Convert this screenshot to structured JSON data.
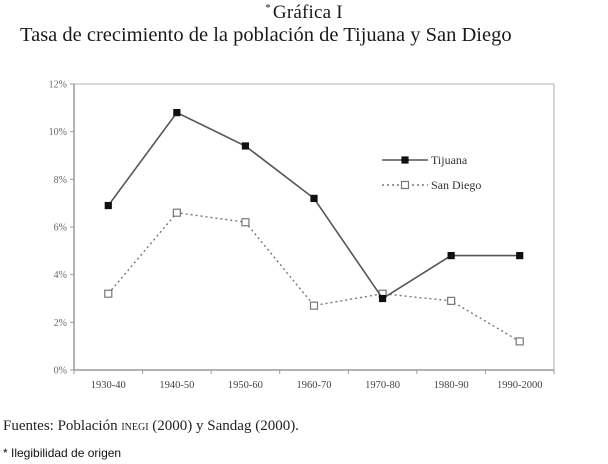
{
  "header": {
    "marker": "*",
    "label": "Gráfica I",
    "title": "Tasa de crecimiento de la población de Tijuana y San Diego"
  },
  "footer": {
    "sources_prefix": "Fuentes: Población ",
    "sources_org": "INEGI",
    "sources_suffix": " (2000) y Sandag (2000).",
    "note": "* Ilegibilidad de origen"
  },
  "colors": {
    "tijuana_line": "#555555",
    "tijuana_marker": "#111111",
    "sandiego_line": "#777777",
    "sandiego_marker": "#777777",
    "plot_border": "#c8c8c8",
    "axis": "#9a9a9a"
  },
  "chart_data": {
    "type": "line",
    "title": "Tasa de crecimiento de la población de Tijuana y San Diego",
    "subtitle": "Gráfica I",
    "xlabel": "",
    "ylabel": "",
    "categories": [
      "1930-40",
      "1940-50",
      "1950-60",
      "1960-70",
      "1970-80",
      "1980-90",
      "1990-2000"
    ],
    "series": [
      {
        "name": "Tijuana",
        "style": "solid",
        "marker": "filled-square",
        "values": [
          6.9,
          10.8,
          9.4,
          7.2,
          3.0,
          4.8,
          4.8
        ]
      },
      {
        "name": "San Diego",
        "style": "dotted",
        "marker": "open-square",
        "values": [
          3.2,
          6.6,
          6.2,
          2.7,
          3.2,
          2.9,
          1.2
        ]
      }
    ],
    "ylim": [
      0,
      12
    ],
    "yticks": [
      0,
      2,
      4,
      6,
      8,
      10,
      12
    ],
    "ytick_labels": [
      "0%",
      "2%",
      "4%",
      "6%",
      "8%",
      "10%",
      "12%"
    ],
    "grid": false,
    "legend_position": "inside-right"
  }
}
